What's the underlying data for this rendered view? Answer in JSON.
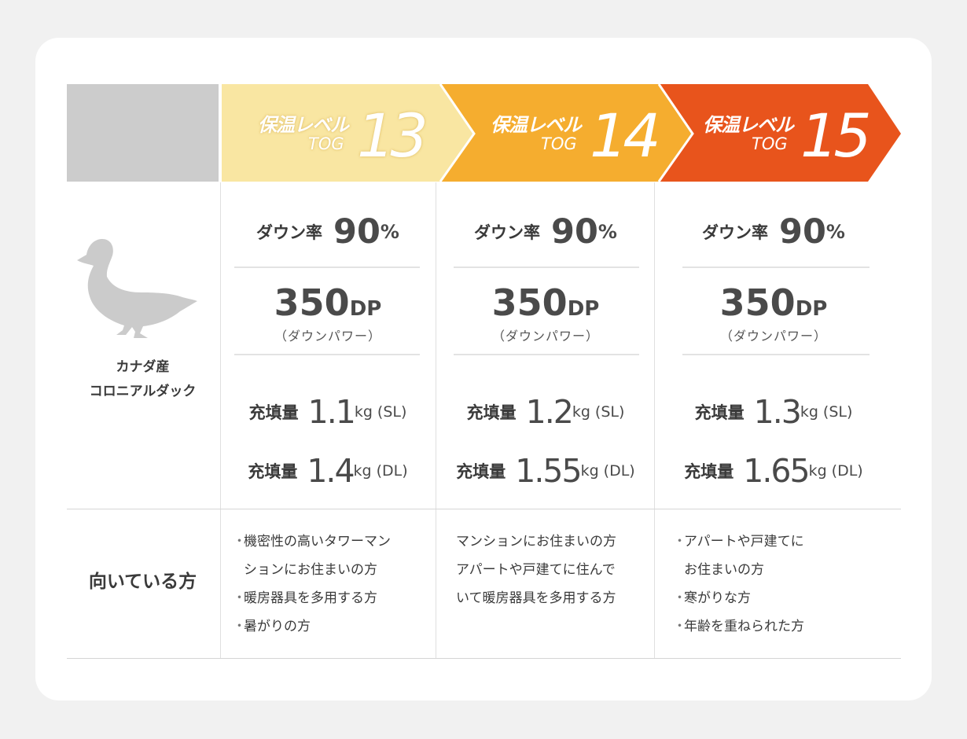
{
  "levels": [
    {
      "name": "保温レベル",
      "tog": "TOG",
      "num": "13",
      "color": "#f9e6a2"
    },
    {
      "name": "保温レベル",
      "tog": "TOG",
      "num": "14",
      "color": "#f5ad2f"
    },
    {
      "name": "保温レベル",
      "tog": "TOG",
      "num": "15",
      "color": "#e8541c"
    }
  ],
  "origin": {
    "line1": "カナダ産",
    "line2": "コロニアルダック"
  },
  "specs": [
    {
      "down_label": "ダウン率",
      "down_value": "90",
      "down_unit": "%",
      "dp_value": "350",
      "dp_unit": "DP",
      "dp_note": "（ダウンパワー）",
      "fill_sl_label": "充填量",
      "fill_sl_value": "1.1",
      "fill_sl_unit": "kg",
      "fill_sl_size": "(SL)",
      "fill_dl_label": "充填量",
      "fill_dl_value": "1.4",
      "fill_dl_unit": "kg",
      "fill_dl_size": "(DL)"
    },
    {
      "down_label": "ダウン率",
      "down_value": "90",
      "down_unit": "%",
      "dp_value": "350",
      "dp_unit": "DP",
      "dp_note": "（ダウンパワー）",
      "fill_sl_label": "充填量",
      "fill_sl_value": "1.2",
      "fill_sl_unit": "kg",
      "fill_sl_size": "(SL)",
      "fill_dl_label": "充填量",
      "fill_dl_value": "1.55",
      "fill_dl_unit": "kg",
      "fill_dl_size": "(DL)"
    },
    {
      "down_label": "ダウン率",
      "down_value": "90",
      "down_unit": "%",
      "dp_value": "350",
      "dp_unit": "DP",
      "dp_note": "（ダウンパワー）",
      "fill_sl_label": "充填量",
      "fill_sl_value": "1.3",
      "fill_sl_unit": "kg",
      "fill_sl_size": "(SL)",
      "fill_dl_label": "充填量",
      "fill_dl_value": "1.65",
      "fill_dl_unit": "kg",
      "fill_dl_size": "(DL)"
    }
  ],
  "suitable": {
    "label": "向いている方",
    "bullet": "・",
    "col1": {
      "l1": "機密性の高いタワーマン",
      "l2": "ションにお住まいの方",
      "l3": "暖房器具を多用する方",
      "l4": "暑がりの方"
    },
    "col2": {
      "l1": "マンションにお住まいの方",
      "l2": "アパートや戸建てに住んで",
      "l3": "いて暖房器具を多用する方"
    },
    "col3": {
      "l1": "アパートや戸建てに",
      "l2": "お住まいの方",
      "l3": "寒がりな方",
      "l4": "年齢を重ねられた方"
    }
  }
}
